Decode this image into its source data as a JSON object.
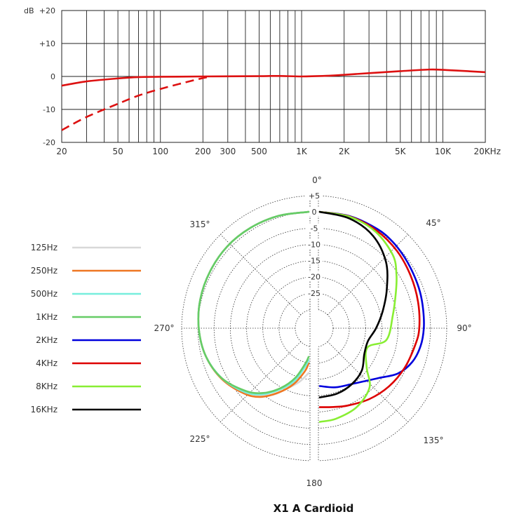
{
  "chart_data": [
    {
      "type": "line",
      "ylabel": "dB",
      "x_scale": "log",
      "xlim": [
        20,
        20000
      ],
      "ylim": [
        -20,
        20
      ],
      "y_ticks": [
        {
          "value": 20,
          "label": "+20"
        },
        {
          "value": 10,
          "label": "+10"
        },
        {
          "value": 0,
          "label": "0"
        },
        {
          "value": -10,
          "label": "-10"
        },
        {
          "value": -20,
          "label": "-20"
        }
      ],
      "x_ticks": [
        {
          "value": 20,
          "label": "20"
        },
        {
          "value": 50,
          "label": "50"
        },
        {
          "value": 100,
          "label": "100"
        },
        {
          "value": 200,
          "label": "200"
        },
        {
          "value": 300,
          "label": "300"
        },
        {
          "value": 500,
          "label": "500"
        },
        {
          "value": 1000,
          "label": "1K"
        },
        {
          "value": 2000,
          "label": "2K"
        },
        {
          "value": 5000,
          "label": "5K"
        },
        {
          "value": 10000,
          "label": "10K"
        },
        {
          "value": 20000,
          "label": "20KHz"
        }
      ],
      "grid": true,
      "series": [
        {
          "style": "solid",
          "color": "#dd1111",
          "points": [
            [
              20,
              -2.8
            ],
            [
              30,
              -1.5
            ],
            [
              50,
              -0.6
            ],
            [
              70,
              -0.2
            ],
            [
              100,
              -0.1
            ],
            [
              200,
              0
            ],
            [
              500,
              0.1
            ],
            [
              700,
              0.15
            ],
            [
              1000,
              0
            ],
            [
              1500,
              0.2
            ],
            [
              2000,
              0.5
            ],
            [
              3000,
              1.0
            ],
            [
              5000,
              1.6
            ],
            [
              8000,
              2.1
            ],
            [
              10000,
              2.0
            ],
            [
              15000,
              1.6
            ],
            [
              20000,
              1.3
            ]
          ]
        },
        {
          "style": "dashed",
          "color": "#dd1111",
          "points": [
            [
              20,
              -16.3
            ],
            [
              30,
              -12.3
            ],
            [
              50,
              -8.3
            ],
            [
              70,
              -5.8
            ],
            [
              100,
              -3.8
            ],
            [
              150,
              -1.8
            ],
            [
              200,
              -0.5
            ],
            [
              230,
              0
            ]
          ]
        }
      ]
    },
    {
      "type": "polar",
      "title": "X1 A Cardioid",
      "r_ticks": [
        {
          "value": 5,
          "label": "+5"
        },
        {
          "value": 0,
          "label": "0"
        },
        {
          "value": -5,
          "label": "-5"
        },
        {
          "value": -10,
          "label": "-10"
        },
        {
          "value": -15,
          "label": "-15"
        },
        {
          "value": -20,
          "label": "-20"
        },
        {
          "value": -25,
          "label": "-25"
        }
      ],
      "r_min": -30,
      "r_max": 5,
      "angle_labels": [
        {
          "angle": 0,
          "label": "0°"
        },
        {
          "angle": 45,
          "label": "45°"
        },
        {
          "angle": 90,
          "label": "90°"
        },
        {
          "angle": 135,
          "label": "135°"
        },
        {
          "angle": 180,
          "label": "180"
        },
        {
          "angle": 225,
          "label": "225°"
        },
        {
          "angle": 270,
          "label": "270°"
        },
        {
          "angle": 315,
          "label": "315°"
        }
      ],
      "legend_position": "left",
      "series": [
        {
          "name": "125Hz",
          "color": "#d8d8d8",
          "side": "left",
          "points": [
            [
              180,
              -22
            ],
            [
              170,
              -19
            ],
            [
              160,
              -16
            ],
            [
              150,
              -12
            ],
            [
              135,
              -8
            ],
            [
              120,
              -5
            ],
            [
              105,
              -3
            ],
            [
              90,
              -2
            ],
            [
              75,
              -1.3
            ],
            [
              60,
              -0.8
            ],
            [
              45,
              -0.3
            ],
            [
              30,
              -0.1
            ],
            [
              15,
              0
            ],
            [
              0,
              0
            ]
          ]
        },
        {
          "name": "250Hz",
          "color": "#ee7722",
          "side": "left",
          "points": [
            [
              180,
              -25
            ],
            [
              175,
              -22.5
            ],
            [
              165,
              -18
            ],
            [
              155,
              -14
            ],
            [
              145,
              -10
            ],
            [
              135,
              -7.5
            ],
            [
              120,
              -4.8
            ],
            [
              105,
              -3
            ],
            [
              90,
              -2
            ],
            [
              75,
              -1.3
            ],
            [
              60,
              -0.8
            ],
            [
              45,
              -0.3
            ],
            [
              30,
              -0.1
            ],
            [
              15,
              0
            ],
            [
              0,
              0
            ]
          ]
        },
        {
          "name": "500Hz",
          "color": "#77eedd",
          "side": "left",
          "points": [
            [
              180,
              -26
            ],
            [
              175,
              -24
            ],
            [
              165,
              -19
            ],
            [
              155,
              -15
            ],
            [
              145,
              -11
            ],
            [
              135,
              -8
            ],
            [
              120,
              -5
            ],
            [
              105,
              -3
            ],
            [
              90,
              -2
            ],
            [
              75,
              -1.3
            ],
            [
              60,
              -0.8
            ],
            [
              45,
              -0.3
            ],
            [
              30,
              -0.1
            ],
            [
              15,
              0
            ],
            [
              0,
              0
            ]
          ]
        },
        {
          "name": "1KHz",
          "color": "#66cc66",
          "side": "left",
          "points": [
            [
              180,
              -27
            ],
            [
              175,
              -25
            ],
            [
              165,
              -20
            ],
            [
              155,
              -15.5
            ],
            [
              145,
              -11.5
            ],
            [
              135,
              -8.5
            ],
            [
              120,
              -5
            ],
            [
              105,
              -3
            ],
            [
              90,
              -2
            ],
            [
              75,
              -1.3
            ],
            [
              60,
              -0.8
            ],
            [
              45,
              -0.3
            ],
            [
              30,
              -0.1
            ],
            [
              15,
              0
            ],
            [
              0,
              0
            ]
          ]
        },
        {
          "name": "2KHz",
          "color": "#0000dd",
          "side": "right",
          "points": [
            [
              0,
              0
            ],
            [
              15,
              -0.1
            ],
            [
              30,
              -0.5
            ],
            [
              40,
              -1
            ],
            [
              50,
              -1.8
            ],
            [
              60,
              -2.5
            ],
            [
              70,
              -3
            ],
            [
              80,
              -3.5
            ],
            [
              90,
              -3.8
            ],
            [
              100,
              -4.3
            ],
            [
              110,
              -5.5
            ],
            [
              120,
              -8
            ],
            [
              130,
              -12
            ],
            [
              140,
              -14.5
            ],
            [
              150,
              -16
            ],
            [
              165,
              -17
            ],
            [
              180,
              -18
            ]
          ]
        },
        {
          "name": "4KHz",
          "color": "#dd0000",
          "side": "right",
          "points": [
            [
              0,
              0
            ],
            [
              15,
              -0.2
            ],
            [
              30,
              -1
            ],
            [
              45,
              -2.2
            ],
            [
              60,
              -3.5
            ],
            [
              75,
              -4.5
            ],
            [
              90,
              -5.2
            ],
            [
              100,
              -6
            ],
            [
              115,
              -7
            ],
            [
              130,
              -8
            ],
            [
              145,
              -9.2
            ],
            [
              160,
              -10.5
            ],
            [
              170,
              -11.2
            ],
            [
              180,
              -11.5
            ]
          ]
        },
        {
          "name": "8KHz",
          "color": "#88ee33",
          "side": "right",
          "points": [
            [
              0,
              0
            ],
            [
              15,
              -0.3
            ],
            [
              30,
              -1.5
            ],
            [
              45,
              -4
            ],
            [
              55,
              -7
            ],
            [
              65,
              -10
            ],
            [
              80,
              -13
            ],
            [
              100,
              -15
            ],
            [
              112,
              -20
            ],
            [
              130,
              -17
            ],
            [
              140,
              -12
            ],
            [
              155,
              -9
            ],
            [
              170,
              -7.5
            ],
            [
              180,
              -7
            ]
          ]
        },
        {
          "name": "16KHz",
          "color": "#000000",
          "side": "right",
          "points": [
            [
              0,
              0
            ],
            [
              15,
              -0.8
            ],
            [
              30,
              -3
            ],
            [
              45,
              -7
            ],
            [
              60,
              -12
            ],
            [
              75,
              -15.8
            ],
            [
              90,
              -18.5
            ],
            [
              105,
              -20.5
            ],
            [
              120,
              -20
            ],
            [
              135,
              -17.5
            ],
            [
              150,
              -16
            ],
            [
              165,
              -15
            ],
            [
              180,
              -14.5
            ]
          ]
        }
      ]
    }
  ]
}
